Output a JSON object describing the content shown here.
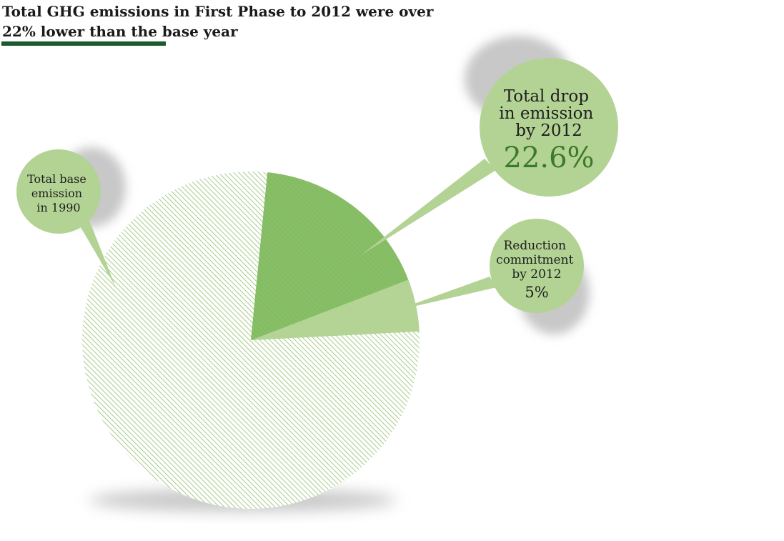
{
  "title": {
    "line1": "Total GHG emissions in First Phase to 2012 were over",
    "line2": "22% lower than the base year"
  },
  "colors": {
    "base_hatch": "#8fbf6b",
    "drop_slice": "#7db85a",
    "commitment_slice": "#b5d597",
    "bubble_fill": "#b3d394",
    "bubble_shadow": "#c8c8c8",
    "headline_rule": "#1b5a2b",
    "highlight_text": "#3b7a2a"
  },
  "chart_data": {
    "type": "pie",
    "title": "Total GHG emissions in First Phase to 2012 were over 22% lower than the base year",
    "units": "%",
    "slices": [
      {
        "name": "Total base emission in 1990",
        "value": 100
      },
      {
        "name": "Total drop in emission by 2012",
        "value": 22.6
      },
      {
        "name": "Reduction commitment by 2012",
        "value": 5
      }
    ]
  },
  "bubbles": {
    "base": {
      "lines": [
        "Total base",
        "emission",
        "in 1990"
      ]
    },
    "drop": {
      "lines": [
        "Total drop",
        "in emission",
        "by 2012"
      ],
      "value_label": "22.6%"
    },
    "commitment": {
      "lines": [
        "Reduction",
        "commitment",
        "by 2012"
      ],
      "value_label": "5%"
    }
  }
}
